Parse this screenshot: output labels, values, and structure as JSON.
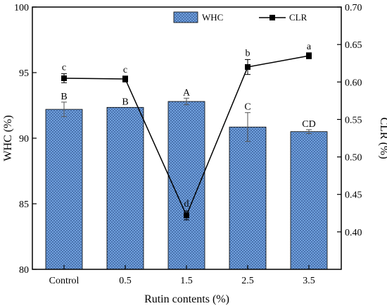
{
  "colors": {
    "bar_fill": "#6f9fdc",
    "bar_dots": "#1f3f7a",
    "line": "#000000",
    "axis": "#000000"
  },
  "chart_data": {
    "type": "bar+line",
    "categories": [
      "Control",
      "0.5",
      "1.5",
      "2.5",
      "3.5"
    ],
    "xlabel": "Rutin contents (%)",
    "y_left": {
      "label": "WHC (%)",
      "lim": [
        80,
        100
      ],
      "ticks": [
        "80",
        "85",
        "90",
        "95",
        "100"
      ]
    },
    "y_right": {
      "label": "CLR (%)",
      "lim": [
        0.35,
        0.7
      ],
      "ticks": [
        "0.40",
        "0.45",
        "0.50",
        "0.55",
        "0.60",
        "0.65",
        "0.70"
      ]
    },
    "legend_position": "top",
    "series": [
      {
        "name": "WHC",
        "type": "bar",
        "axis": "left",
        "values": [
          92.2,
          92.35,
          92.8,
          90.85,
          90.5
        ],
        "errors": [
          0.55,
          0.0,
          0.25,
          1.1,
          0.15
        ],
        "labels": [
          "B",
          "B",
          "A",
          "C",
          "CD"
        ]
      },
      {
        "name": "CLR",
        "type": "line",
        "axis": "right",
        "values": [
          0.605,
          0.604,
          0.422,
          0.62,
          0.635
        ],
        "errors": [
          0.006,
          0.004,
          0.006,
          0.01,
          0.004
        ],
        "labels": [
          "c",
          "c",
          "d",
          "b",
          "a"
        ]
      }
    ]
  }
}
